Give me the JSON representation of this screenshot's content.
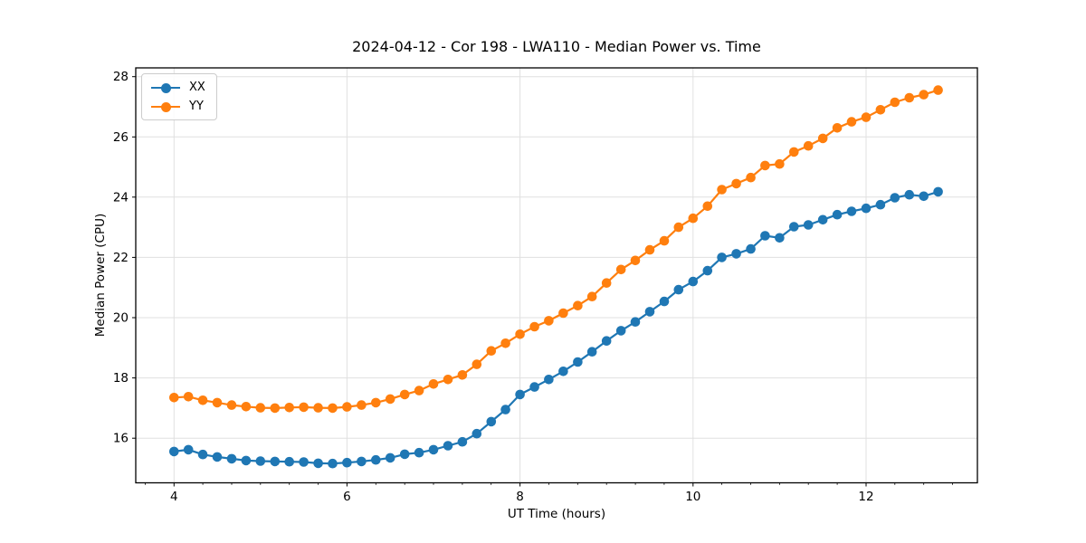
{
  "figure": {
    "background": "#ffffff",
    "accent_colors": {
      "xx": "#1f77b4",
      "yy": "#ff7f0e",
      "grid": "#e0e0e0",
      "spine": "#000000"
    }
  },
  "chart_data": {
    "type": "line",
    "title": "2024-04-12 - Cor 198 - LWA110 - Median Power vs. Time",
    "xlabel": "UT Time (hours)",
    "ylabel": "Median Power (CPU)",
    "xlim": [
      3.558,
      13.287
    ],
    "ylim": [
      14.52,
      28.29
    ],
    "x_ticks": [
      4,
      6,
      8,
      10,
      12
    ],
    "y_ticks": [
      16,
      18,
      20,
      22,
      24,
      26,
      28
    ],
    "x_minor_step": 0.33333,
    "grid": true,
    "legend": {
      "position": "upper-left",
      "entries": [
        "XX",
        "YY"
      ]
    },
    "marker": "circle",
    "x": [
      4.0,
      4.167,
      4.333,
      4.5,
      4.667,
      4.833,
      5.0,
      5.167,
      5.333,
      5.5,
      5.667,
      5.833,
      6.0,
      6.167,
      6.333,
      6.5,
      6.667,
      6.833,
      7.0,
      7.167,
      7.333,
      7.5,
      7.667,
      7.833,
      8.0,
      8.167,
      8.333,
      8.5,
      8.667,
      8.833,
      9.0,
      9.167,
      9.333,
      9.5,
      9.667,
      9.833,
      10.0,
      10.167,
      10.333,
      10.5,
      10.667,
      10.833,
      11.0,
      11.167,
      11.333,
      11.5,
      11.667,
      11.833,
      12.0,
      12.167,
      12.333,
      12.5,
      12.667,
      12.833
    ],
    "series": [
      {
        "name": "XX",
        "color": "#1f77b4",
        "values": [
          15.56,
          15.62,
          15.46,
          15.38,
          15.32,
          15.26,
          15.24,
          15.23,
          15.22,
          15.21,
          15.17,
          15.16,
          15.19,
          15.23,
          15.28,
          15.35,
          15.47,
          15.52,
          15.62,
          15.75,
          15.88,
          16.15,
          16.55,
          16.95,
          17.45,
          17.7,
          17.95,
          18.22,
          18.53,
          18.87,
          19.23,
          19.57,
          19.86,
          20.2,
          20.54,
          20.93,
          21.2,
          21.56,
          22.0,
          22.12,
          22.28,
          22.72,
          22.65,
          23.02,
          23.08,
          23.25,
          23.42,
          23.53,
          23.63,
          23.75,
          23.98,
          24.08,
          24.03,
          24.18
        ]
      },
      {
        "name": "YY",
        "color": "#ff7f0e",
        "values": [
          17.35,
          17.38,
          17.26,
          17.18,
          17.1,
          17.05,
          17.01,
          17.0,
          17.02,
          17.03,
          17.01,
          17.0,
          17.04,
          17.1,
          17.18,
          17.3,
          17.45,
          17.58,
          17.8,
          17.95,
          18.1,
          18.45,
          18.9,
          19.15,
          19.45,
          19.7,
          19.9,
          20.15,
          20.4,
          20.7,
          21.15,
          21.6,
          21.9,
          22.25,
          22.55,
          23.0,
          23.3,
          23.7,
          24.25,
          24.45,
          24.65,
          25.05,
          25.1,
          25.5,
          25.7,
          25.95,
          26.3,
          26.5,
          26.65,
          26.9,
          27.15,
          27.3,
          27.4,
          27.55
        ]
      }
    ]
  }
}
